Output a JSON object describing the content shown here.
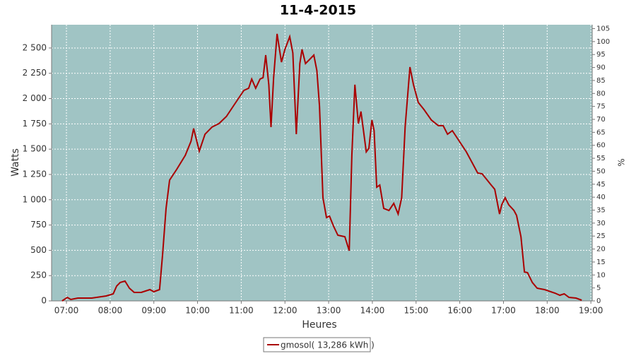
{
  "chart_data": {
    "type": "line",
    "title": "11-4-2015",
    "xlabel": "Heures",
    "ylabel": "Watts",
    "y2label": "%",
    "x": [
      6.9,
      7.02,
      7.1,
      7.26,
      7.58,
      7.91,
      8.07,
      8.15,
      8.23,
      8.34,
      8.44,
      8.55,
      8.71,
      8.91,
      9.0,
      9.13,
      9.2,
      9.28,
      9.36,
      9.52,
      9.72,
      9.85,
      9.91,
      10.04,
      10.17,
      10.33,
      10.49,
      10.66,
      10.82,
      11.06,
      11.17,
      11.24,
      11.33,
      11.43,
      11.5,
      11.56,
      11.63,
      11.68,
      11.74,
      11.82,
      11.92,
      12.0,
      12.11,
      12.18,
      12.26,
      12.34,
      12.39,
      12.47,
      12.55,
      12.66,
      12.73,
      12.79,
      12.87,
      12.95,
      13.02,
      13.11,
      13.21,
      13.37,
      13.47,
      13.53,
      13.6,
      13.68,
      13.74,
      13.86,
      13.92,
      13.99,
      14.04,
      14.1,
      14.17,
      14.26,
      14.38,
      14.49,
      14.59,
      14.67,
      14.75,
      14.86,
      14.94,
      15.05,
      15.18,
      15.35,
      15.51,
      15.62,
      15.72,
      15.83,
      15.99,
      16.15,
      16.28,
      16.41,
      16.51,
      16.72,
      16.8,
      16.91,
      16.96,
      17.04,
      17.12,
      17.24,
      17.3,
      17.4,
      17.48,
      17.55,
      17.66,
      17.77,
      17.94,
      18.18,
      18.29,
      18.39,
      18.5,
      18.66,
      18.79
    ],
    "series": [
      {
        "name": "gmosol( 13,286 kWh )",
        "color": "#aa0000",
        "values": [
          0,
          35,
          14,
          28,
          28,
          49,
          70,
          147,
          182,
          196,
          126,
          84,
          84,
          112,
          91,
          112,
          461,
          915,
          1194,
          1299,
          1439,
          1578,
          1704,
          1480,
          1648,
          1718,
          1753,
          1823,
          1927,
          2081,
          2102,
          2193,
          2102,
          2193,
          2207,
          2430,
          2137,
          1718,
          2207,
          2640,
          2360,
          2486,
          2612,
          2451,
          1648,
          2346,
          2486,
          2346,
          2381,
          2430,
          2277,
          1927,
          1020,
          824,
          838,
          740,
          649,
          635,
          496,
          1439,
          2137,
          1753,
          1872,
          1473,
          1508,
          1788,
          1683,
          1124,
          1145,
          915,
          894,
          964,
          859,
          1020,
          1718,
          2311,
          2137,
          1962,
          1892,
          1788,
          1732,
          1732,
          1648,
          1683,
          1578,
          1473,
          1369,
          1264,
          1257,
          1145,
          1103,
          859,
          950,
          1020,
          950,
          894,
          845,
          635,
          286,
          279,
          182,
          126,
          112,
          77,
          56,
          70,
          35,
          28,
          7
        ]
      }
    ],
    "xlim": [
      6.66,
      19.03
    ],
    "xticks": [
      {
        "value": 7,
        "label": "07:00"
      },
      {
        "value": 8,
        "label": "08:00"
      },
      {
        "value": 9,
        "label": "09:00"
      },
      {
        "value": 10,
        "label": "10:00"
      },
      {
        "value": 11,
        "label": "11:00"
      },
      {
        "value": 12,
        "label": "12:00"
      },
      {
        "value": 13,
        "label": "13:00"
      },
      {
        "value": 14,
        "label": "14:00"
      },
      {
        "value": 15,
        "label": "15:00"
      },
      {
        "value": 16,
        "label": "16:00"
      },
      {
        "value": 17,
        "label": "17:00"
      },
      {
        "value": 18,
        "label": "18:00"
      },
      {
        "value": 19,
        "label": "19:00"
      }
    ],
    "ylim": [
      0,
      2730
    ],
    "yticks": [
      0,
      250,
      500,
      750,
      {
        "value": 1000,
        "label": "1 000"
      },
      {
        "value": 1250,
        "label": "1 250"
      },
      {
        "value": 1500,
        "label": "1 500"
      },
      {
        "value": 1750,
        "label": "1 750"
      },
      {
        "value": 2000,
        "label": "2 000"
      },
      {
        "value": 2250,
        "label": "2 250"
      },
      {
        "value": 2500,
        "label": "2 500"
      }
    ],
    "y2lim": [
      0,
      106.5
    ],
    "y2ticks": [
      0,
      5,
      10,
      15,
      20,
      25,
      30,
      35,
      40,
      45,
      50,
      55,
      60,
      65,
      70,
      75,
      80,
      85,
      90,
      95,
      100,
      105
    ],
    "grid": true,
    "background": "#a0c4c4"
  }
}
